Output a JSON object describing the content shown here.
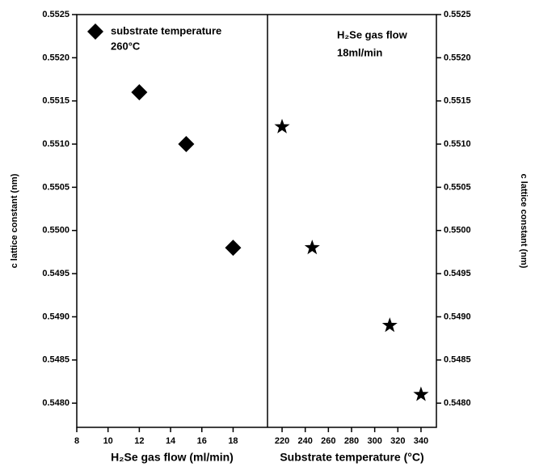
{
  "chart_data": [
    {
      "type": "scatter",
      "marker": "diamond",
      "xlabel": "H₂Se gas flow (ml/min)",
      "ylabel": "c lattice constant (nm)",
      "annotations": [
        "260°C"
      ],
      "x": [
        12,
        15,
        18
      ],
      "series": [
        {
          "name": "substrate temperature",
          "color": "#000000",
          "values": [
            0.5516,
            0.551,
            0.5498
          ]
        }
      ],
      "xlim": [
        8,
        20.2
      ],
      "xticks": [
        8,
        10,
        12,
        14,
        16,
        18
      ],
      "ylim": [
        0.54772,
        0.5525
      ],
      "yticks": [
        {
          "value": 0.548,
          "label": "0.5480"
        },
        0.5485,
        {
          "value": 0.549,
          "label": "0.5490"
        },
        0.5495,
        {
          "value": 0.55,
          "label": "0.5500"
        },
        0.5505,
        {
          "value": 0.551,
          "label": "0.5510"
        },
        0.5515,
        {
          "value": 0.552,
          "label": "0.5520"
        },
        0.5525
      ]
    },
    {
      "type": "scatter",
      "marker": "star",
      "xlabel": "Substrate temperature (°C)",
      "y2label": "c lattice constant (nm)",
      "annotations": [
        "H₂Se gas flow",
        "18ml/min"
      ],
      "x": [
        220,
        246,
        313,
        340
      ],
      "series": [
        {
          "color": "#000000",
          "values": [
            0.5512,
            0.5498,
            0.5489,
            0.5481
          ]
        }
      ],
      "xlim": [
        207.4,
        353.3
      ],
      "xticks": [
        220,
        240,
        260,
        280,
        300,
        320,
        340
      ],
      "y2lim": [
        0.54772,
        0.5525
      ],
      "y2ticks": [
        {
          "value": 0.548,
          "label": "0.5480"
        },
        0.5485,
        {
          "value": 0.549,
          "label": "0.5490"
        },
        0.5495,
        {
          "value": 0.55,
          "label": "0.5500"
        },
        0.5505,
        {
          "value": 0.551,
          "label": "0.5510"
        },
        0.5515,
        {
          "value": 0.552,
          "label": "0.5520"
        },
        0.5525
      ]
    }
  ]
}
